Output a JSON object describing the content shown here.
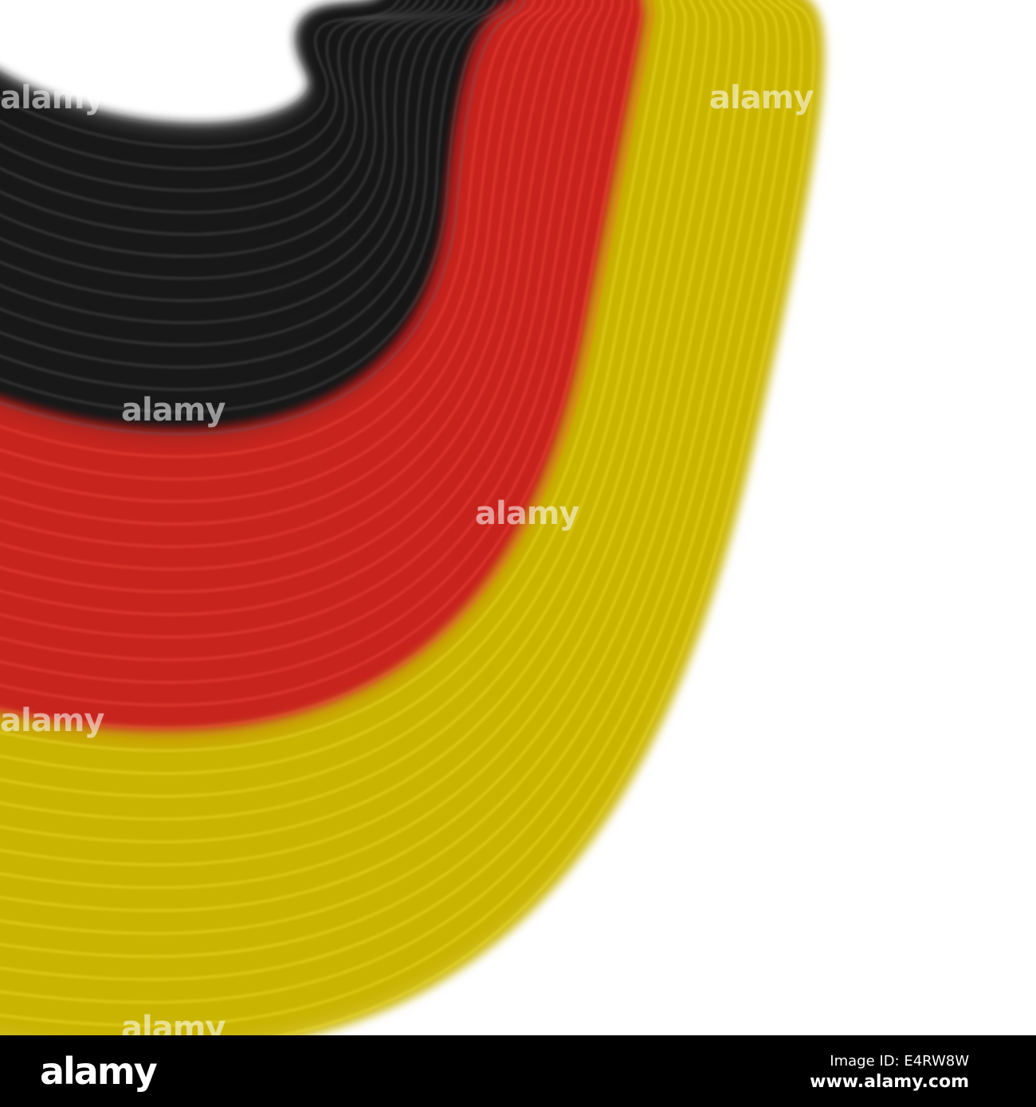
{
  "image": {
    "description_colors": {
      "black": "#1a1a1a",
      "red": "#c8201e",
      "yellow": "#c9b400",
      "background": "#ffffff"
    },
    "watermark": "alamy"
  },
  "footer": {
    "logo": "alamy",
    "image_id": "Image ID: E4RW8W",
    "website": "www.alamy.com"
  }
}
